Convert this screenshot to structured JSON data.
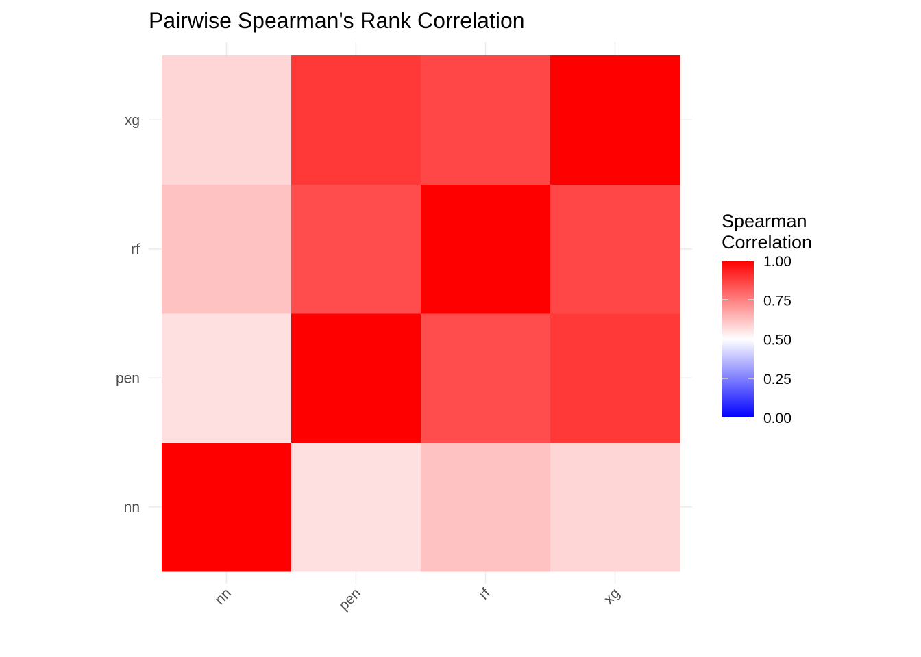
{
  "chart_data": {
    "type": "heatmap",
    "title": "Pairwise Spearman's Rank Correlation",
    "x_categories": [
      "nn",
      "pen",
      "rf",
      "xg"
    ],
    "y_categories": [
      "nn",
      "pen",
      "rf",
      "xg"
    ],
    "xlabel": "",
    "ylabel": "",
    "values": [
      [
        1.0,
        0.56,
        0.62,
        0.58
      ],
      [
        0.56,
        1.0,
        0.85,
        0.89
      ],
      [
        0.62,
        0.85,
        1.0,
        0.86
      ],
      [
        0.58,
        0.89,
        0.86,
        1.0
      ]
    ],
    "color_scale": {
      "low": "#0000ff",
      "mid": "#ffffff",
      "high": "#ff0000",
      "midpoint": 0.5,
      "limits": [
        0,
        1
      ]
    },
    "legend": {
      "title_lines": [
        "Spearman",
        "Correlation"
      ],
      "ticks": [
        "0.00",
        "0.25",
        "0.50",
        "0.75",
        "1.00"
      ],
      "tick_values": [
        0,
        0.25,
        0.5,
        0.75,
        1
      ],
      "placement": "right"
    },
    "x_tick_rotation_deg": 45,
    "grid": true
  }
}
